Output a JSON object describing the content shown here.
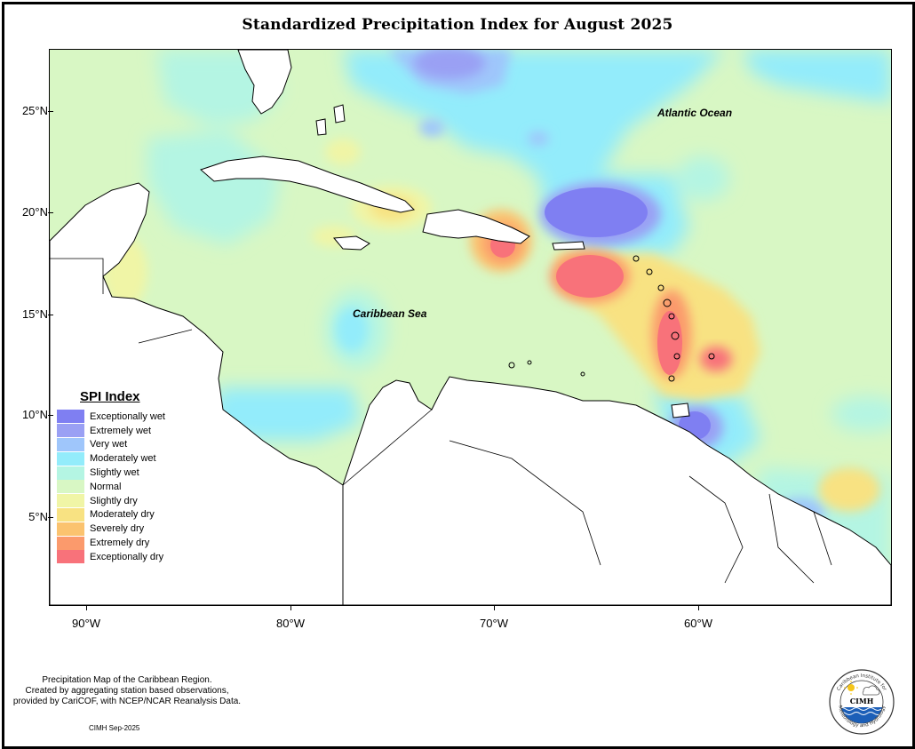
{
  "title": "Standardized Precipitation Index for August 2025",
  "y_axis_ticks": [
    "25°N",
    "20°N",
    "15°N",
    "10°N",
    "5°N"
  ],
  "x_axis_ticks": [
    "90°W",
    "80°W",
    "70°W",
    "60°W"
  ],
  "labels": {
    "atlantic": "Atlantic Ocean",
    "caribbean": "Caribbean Sea"
  },
  "legend": {
    "title": "SPI Index",
    "items": [
      {
        "label": "Exceptionally wet",
        "color": "#7f7ff2"
      },
      {
        "label": "Extremely wet",
        "color": "#9aa0f4"
      },
      {
        "label": "Very wet",
        "color": "#9fc6fb"
      },
      {
        "label": "Moderately wet",
        "color": "#93ecfb"
      },
      {
        "label": "Slightly wet",
        "color": "#b4f5e3"
      },
      {
        "label": "Normal",
        "color": "#d8f7c4"
      },
      {
        "label": "Slightly dry",
        "color": "#f0f5a6"
      },
      {
        "label": "Moderately dry",
        "color": "#f8e282"
      },
      {
        "label": "Severely dry",
        "color": "#fbc36f"
      },
      {
        "label": "Extremely dry",
        "color": "#fb9a6c"
      },
      {
        "label": "Exceptionally dry",
        "color": "#f8727a"
      }
    ]
  },
  "footnote": {
    "line1": "Precipitation Map of the Caribbean Region.",
    "line2": "Created by aggregating station based observations,",
    "line3": "provided by CariCOF, with NCEP/NCAR Reanalysis Data.",
    "date": "CIMH Sep-2025"
  },
  "logo": {
    "top_text": "Caribbean Institute for",
    "bottom_text": "Meteorology and Hydrology",
    "center_text": "CIMH"
  }
}
